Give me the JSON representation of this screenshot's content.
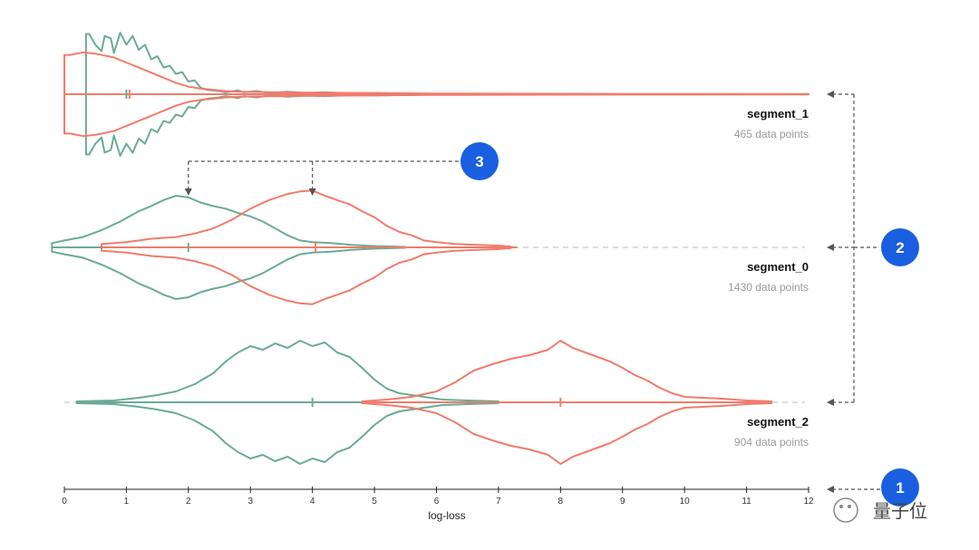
{
  "chart_data": {
    "type": "violin",
    "xlabel": "log-loss",
    "xlim": [
      0,
      12
    ],
    "xticks": [
      0,
      1,
      2,
      3,
      4,
      5,
      6,
      7,
      8,
      9,
      10,
      11,
      12
    ],
    "colors": {
      "series_a": "#6aab95",
      "series_b": "#f07c6c",
      "badge": "#1a5fe0",
      "arrow": "#555555"
    },
    "segments": [
      {
        "name": "segment_1",
        "count_label": "465 data points",
        "green": [
          [
            0.35,
            0.95
          ],
          [
            0.4,
            0.95
          ],
          [
            0.5,
            0.78
          ],
          [
            0.6,
            0.68
          ],
          [
            0.65,
            0.92
          ],
          [
            0.75,
            0.88
          ],
          [
            0.8,
            0.65
          ],
          [
            0.9,
            0.97
          ],
          [
            1.0,
            0.78
          ],
          [
            1.1,
            0.92
          ],
          [
            1.2,
            0.7
          ],
          [
            1.3,
            0.78
          ],
          [
            1.4,
            0.55
          ],
          [
            1.5,
            0.6
          ],
          [
            1.6,
            0.42
          ],
          [
            1.7,
            0.45
          ],
          [
            1.8,
            0.32
          ],
          [
            1.9,
            0.35
          ],
          [
            2.0,
            0.2
          ],
          [
            2.1,
            0.22
          ],
          [
            2.2,
            0.1
          ],
          [
            2.3,
            0.07
          ],
          [
            2.5,
            0.05
          ],
          [
            2.6,
            0.03
          ],
          [
            2.8,
            0.06
          ],
          [
            2.9,
            0.03
          ],
          [
            3.1,
            0.05
          ],
          [
            3.3,
            0.02
          ],
          [
            3.6,
            0.04
          ],
          [
            3.9,
            0.02
          ],
          [
            4.2,
            0.03
          ],
          [
            4.6,
            0.015
          ],
          [
            5.0,
            0.02
          ],
          [
            5.5,
            0.01
          ],
          [
            6.0,
            0.005
          ]
        ],
        "red": [
          [
            0.0,
            0.62
          ],
          [
            0.1,
            0.62
          ],
          [
            0.3,
            0.66
          ],
          [
            0.5,
            0.64
          ],
          [
            0.8,
            0.58
          ],
          [
            1.0,
            0.5
          ],
          [
            1.2,
            0.42
          ],
          [
            1.4,
            0.34
          ],
          [
            1.6,
            0.26
          ],
          [
            1.8,
            0.18
          ],
          [
            2.0,
            0.12
          ],
          [
            2.2,
            0.09
          ],
          [
            2.4,
            0.07
          ],
          [
            2.6,
            0.05
          ],
          [
            2.8,
            0.04
          ],
          [
            3.0,
            0.035
          ],
          [
            3.5,
            0.03
          ],
          [
            4.0,
            0.025
          ],
          [
            5.0,
            0.018
          ],
          [
            6.0,
            0.012
          ],
          [
            7.0,
            0.008
          ],
          [
            9.0,
            0.006
          ],
          [
            12.0,
            0.004
          ]
        ],
        "green_range": [
          0.3,
          6.2
        ],
        "red_range": [
          0.0,
          12.0
        ],
        "green_median": 1.0,
        "red_median": 1.05
      },
      {
        "name": "segment_0",
        "count_label": "1430 data points",
        "green": [
          [
            -0.2,
            0.05
          ],
          [
            0,
            0.08
          ],
          [
            0.3,
            0.12
          ],
          [
            0.6,
            0.2
          ],
          [
            0.9,
            0.3
          ],
          [
            1.2,
            0.42
          ],
          [
            1.4,
            0.48
          ],
          [
            1.6,
            0.55
          ],
          [
            1.8,
            0.6
          ],
          [
            2.0,
            0.58
          ],
          [
            2.2,
            0.52
          ],
          [
            2.4,
            0.48
          ],
          [
            2.6,
            0.45
          ],
          [
            2.8,
            0.4
          ],
          [
            3.0,
            0.36
          ],
          [
            3.2,
            0.3
          ],
          [
            3.4,
            0.22
          ],
          [
            3.6,
            0.14
          ],
          [
            3.8,
            0.08
          ],
          [
            4.0,
            0.06
          ],
          [
            4.3,
            0.05
          ],
          [
            4.6,
            0.03
          ],
          [
            5.0,
            0.015
          ],
          [
            5.3,
            0.01
          ],
          [
            5.5,
            0.005
          ]
        ],
        "red": [
          [
            0.6,
            0.04
          ],
          [
            1.0,
            0.06
          ],
          [
            1.4,
            0.1
          ],
          [
            1.8,
            0.12
          ],
          [
            2.1,
            0.16
          ],
          [
            2.4,
            0.22
          ],
          [
            2.7,
            0.32
          ],
          [
            3.0,
            0.45
          ],
          [
            3.3,
            0.55
          ],
          [
            3.6,
            0.62
          ],
          [
            3.8,
            0.65
          ],
          [
            4.0,
            0.66
          ],
          [
            4.2,
            0.6
          ],
          [
            4.4,
            0.55
          ],
          [
            4.6,
            0.5
          ],
          [
            4.8,
            0.42
          ],
          [
            5.0,
            0.35
          ],
          [
            5.2,
            0.25
          ],
          [
            5.4,
            0.18
          ],
          [
            5.6,
            0.14
          ],
          [
            5.8,
            0.08
          ],
          [
            6.0,
            0.06
          ],
          [
            6.3,
            0.04
          ],
          [
            6.6,
            0.03
          ],
          [
            7.0,
            0.02
          ],
          [
            7.2,
            0.01
          ]
        ],
        "green_range": [
          -0.2,
          5.6
        ],
        "red_range": [
          0.6,
          7.3
        ],
        "green_median": 2.0,
        "red_median": 4.05
      },
      {
        "name": "segment_2",
        "count_label": "904 data points",
        "green": [
          [
            0.2,
            0.01
          ],
          [
            0.8,
            0.02
          ],
          [
            1.2,
            0.05
          ],
          [
            1.5,
            0.08
          ],
          [
            1.8,
            0.12
          ],
          [
            2.1,
            0.2
          ],
          [
            2.4,
            0.32
          ],
          [
            2.6,
            0.45
          ],
          [
            2.8,
            0.55
          ],
          [
            3.0,
            0.62
          ],
          [
            3.2,
            0.58
          ],
          [
            3.4,
            0.65
          ],
          [
            3.6,
            0.6
          ],
          [
            3.8,
            0.68
          ],
          [
            4.0,
            0.62
          ],
          [
            4.2,
            0.66
          ],
          [
            4.4,
            0.55
          ],
          [
            4.6,
            0.5
          ],
          [
            4.8,
            0.38
          ],
          [
            5.0,
            0.25
          ],
          [
            5.2,
            0.15
          ],
          [
            5.4,
            0.1
          ],
          [
            5.6,
            0.08
          ],
          [
            5.8,
            0.06
          ],
          [
            6.1,
            0.03
          ],
          [
            6.5,
            0.02
          ],
          [
            7.0,
            0.01
          ]
        ],
        "red": [
          [
            4.8,
            0.01
          ],
          [
            5.2,
            0.03
          ],
          [
            5.6,
            0.06
          ],
          [
            6.0,
            0.12
          ],
          [
            6.3,
            0.22
          ],
          [
            6.6,
            0.35
          ],
          [
            6.9,
            0.42
          ],
          [
            7.2,
            0.48
          ],
          [
            7.5,
            0.52
          ],
          [
            7.8,
            0.58
          ],
          [
            8.0,
            0.68
          ],
          [
            8.2,
            0.6
          ],
          [
            8.4,
            0.55
          ],
          [
            8.6,
            0.5
          ],
          [
            8.8,
            0.45
          ],
          [
            9.0,
            0.38
          ],
          [
            9.2,
            0.3
          ],
          [
            9.4,
            0.24
          ],
          [
            9.6,
            0.16
          ],
          [
            9.8,
            0.1
          ],
          [
            10.0,
            0.06
          ],
          [
            10.3,
            0.05
          ],
          [
            10.6,
            0.04
          ],
          [
            11.0,
            0.02
          ],
          [
            11.4,
            0.01
          ]
        ],
        "green_range": [
          0.2,
          7.0
        ],
        "red_range": [
          4.8,
          11.4
        ],
        "green_median": 4.0,
        "red_median": 8.0
      }
    ],
    "annotations": [
      {
        "label": "1",
        "target": "x-axis"
      },
      {
        "label": "2",
        "target": "segment baselines"
      },
      {
        "label": "3",
        "target": "distribution peaks of segment_0",
        "points_to_x": [
          2.0,
          4.0
        ]
      }
    ]
  },
  "watermark": {
    "text": "量子位"
  }
}
